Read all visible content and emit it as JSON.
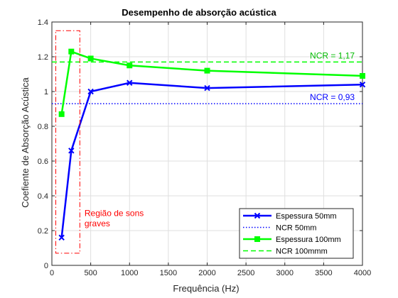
{
  "chart_data": {
    "type": "line",
    "title": "Desempenho de absorção acústica",
    "xlabel": "Frequência (Hz)",
    "ylabel": "Coefiente de Absorção Acústica",
    "xlim": [
      0,
      4000
    ],
    "ylim": [
      0,
      1.4
    ],
    "xticks": [
      0,
      500,
      1000,
      1500,
      2000,
      2500,
      3000,
      3500,
      4000
    ],
    "yticks": [
      0,
      0.2,
      0.4,
      0.6,
      0.8,
      1,
      1.2,
      1.4
    ],
    "xtick_labels": [
      "0",
      "500",
      "1000",
      "1500",
      "2000",
      "2500",
      "3000",
      "3500",
      "4000"
    ],
    "ytick_labels": [
      "0",
      "0.2",
      "0.4",
      "0.6",
      "0.8",
      "1",
      "1.2",
      "1.4"
    ],
    "grid": true,
    "legend_position": "bottom-right",
    "series": [
      {
        "name": "Espessura 50mm",
        "color": "#0000ff",
        "marker": "x",
        "line_style": "solid",
        "x": [
          125,
          250,
          500,
          1000,
          2000,
          4000
        ],
        "y": [
          0.16,
          0.66,
          1.0,
          1.05,
          1.02,
          1.04
        ]
      },
      {
        "name": "NCR 50mm",
        "color": "#0000ff",
        "line_style": "dotted",
        "x": [
          0,
          4000
        ],
        "y": [
          0.93,
          0.93
        ]
      },
      {
        "name": "Espessura 100mm",
        "color": "#00ff00",
        "marker": "square",
        "line_style": "solid",
        "x": [
          125,
          250,
          500,
          1000,
          2000,
          4000
        ],
        "y": [
          0.87,
          1.23,
          1.19,
          1.15,
          1.12,
          1.09
        ]
      },
      {
        "name": "NCR 100mmm",
        "color": "#00ff00",
        "line_style": "dashed",
        "x": [
          0,
          4000
        ],
        "y": [
          1.17,
          1.17
        ]
      }
    ],
    "annotations": [
      {
        "text": "NCR = 1,17",
        "color": "#00bb00",
        "x": 3900,
        "y": 1.17
      },
      {
        "text": "NCR = 0,93",
        "color": "#0000ff",
        "x": 3900,
        "y": 0.93
      },
      {
        "text": "Região de sons",
        "color": "#ff0000",
        "x": 420,
        "y": 0.3
      },
      {
        "text": "graves",
        "color": "#ff0000",
        "x": 420,
        "y": 0.24
      }
    ],
    "highlight_region": {
      "color": "#ff0000",
      "line_style": "dashdot",
      "x": [
        50,
        360
      ],
      "y": [
        0.07,
        1.35
      ]
    }
  }
}
